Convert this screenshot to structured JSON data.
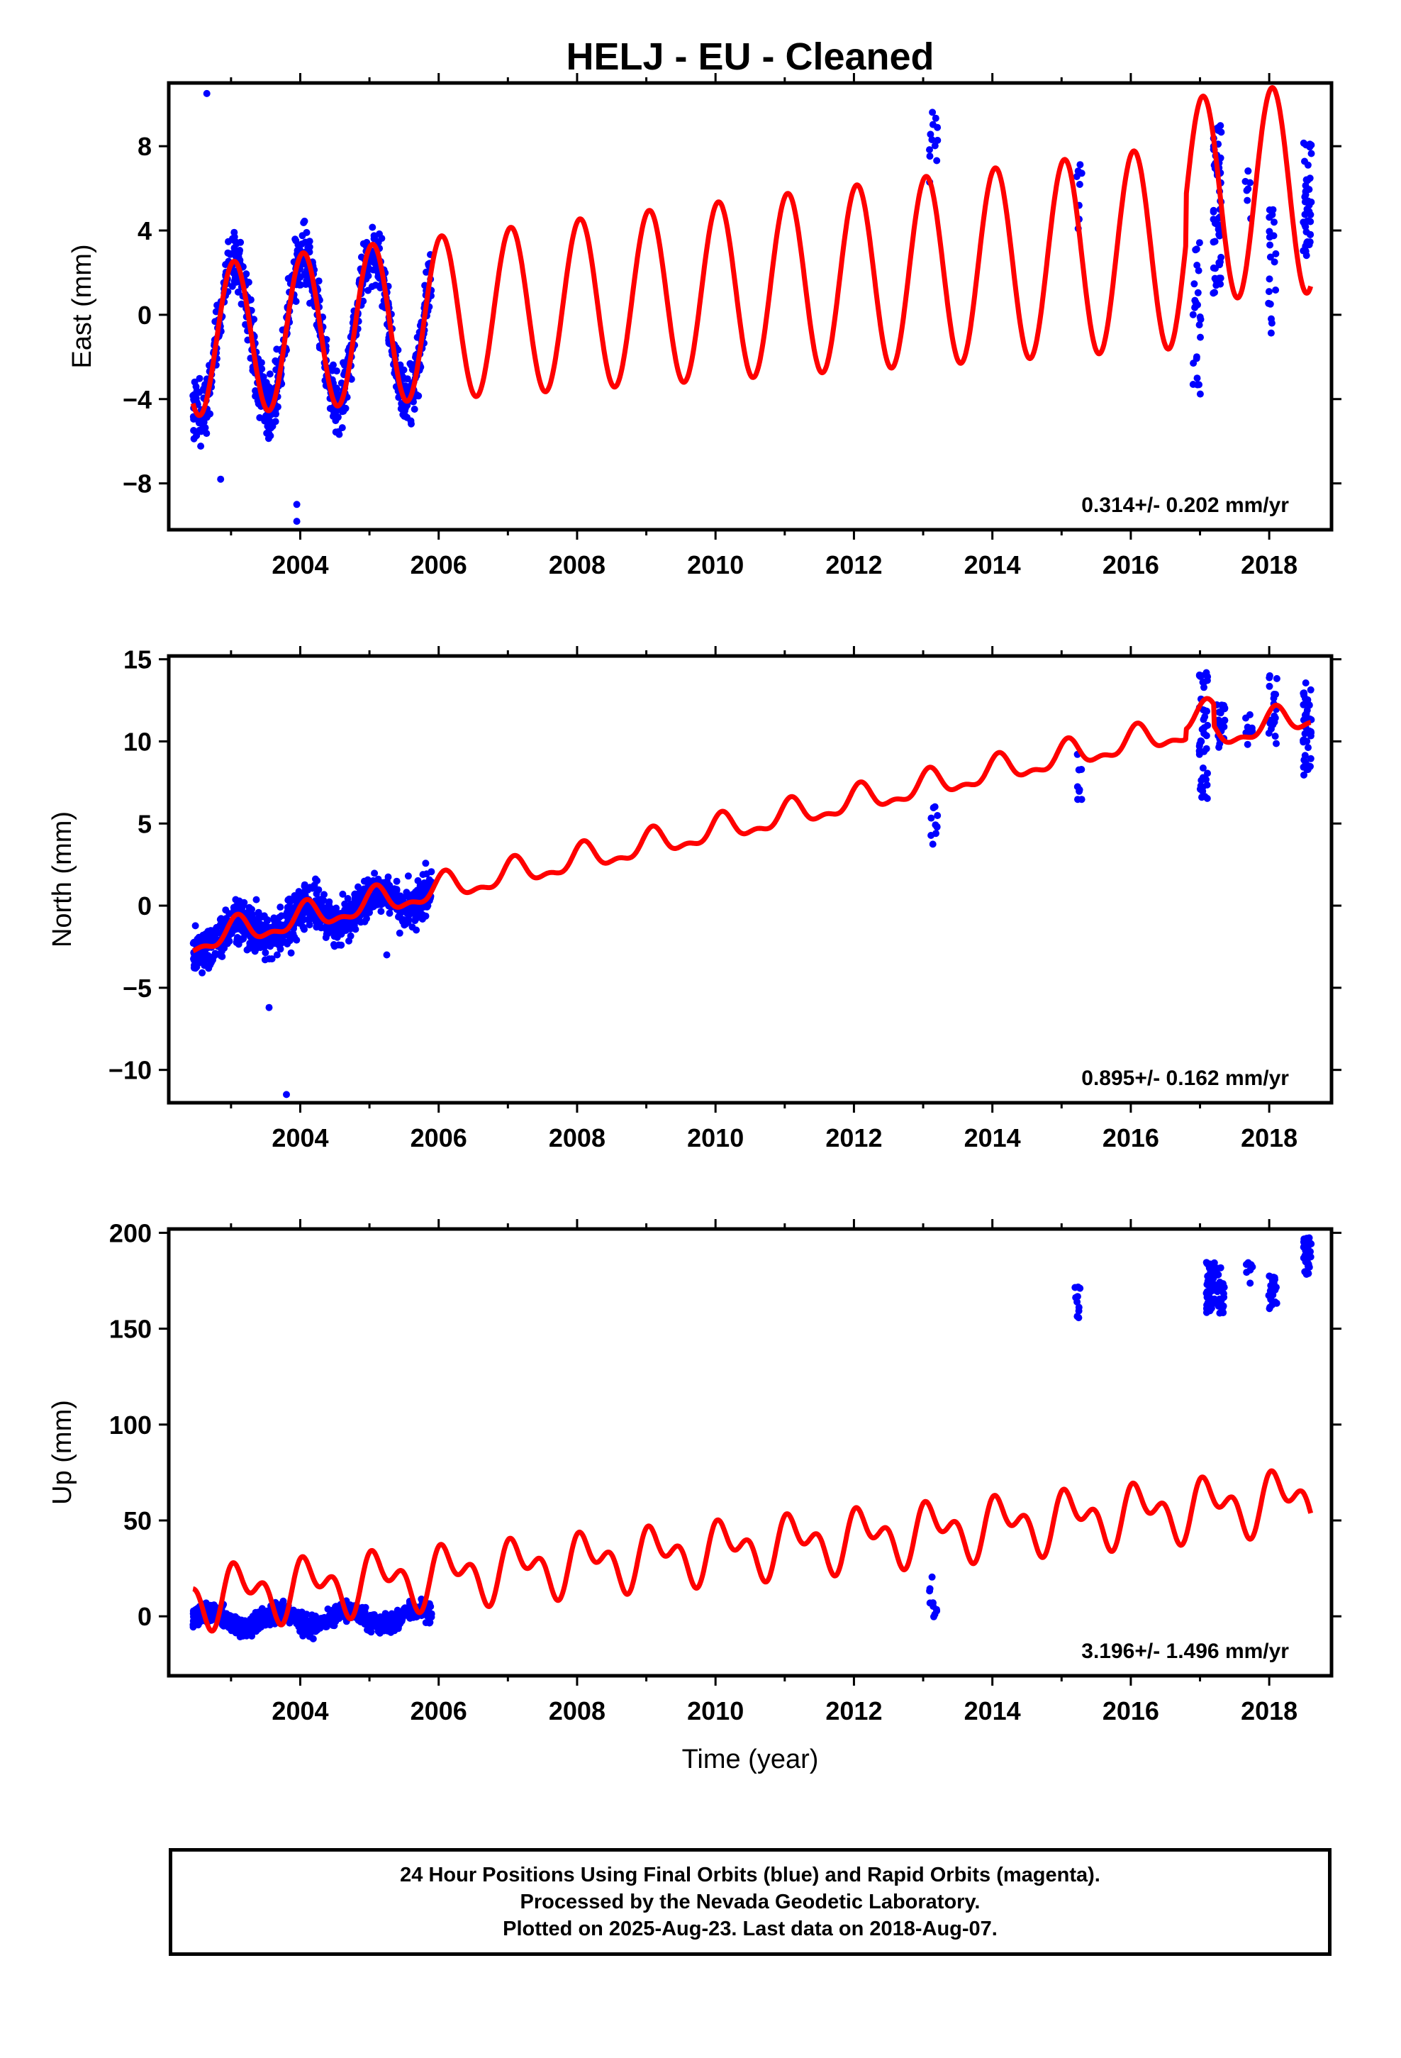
{
  "title": "HELJ  - EU - Cleaned",
  "footer": {
    "line1": "24 Hour Positions Using Final Orbits (blue) and Rapid Orbits (magenta).",
    "line2": "Processed by the Nevada Geodetic Laboratory.",
    "line3": "Plotted on 2025-Aug-23. Last data on 2018-Aug-07."
  },
  "colors": {
    "data": "#0000ff",
    "model": "#ff0000",
    "frame": "#000000"
  },
  "chart_data": [
    {
      "type": "scatter",
      "ylabel": "East (mm)",
      "xlabel": "",
      "rate_label": "0.314+/- 0.202 mm/yr",
      "xlim": [
        2002.1,
        2018.9
      ],
      "ylim": [
        -10.2,
        11
      ],
      "x_ticks": [
        2004,
        2006,
        2008,
        2010,
        2012,
        2014,
        2016,
        2018
      ],
      "y_ticks": [
        -8,
        -4,
        0,
        4,
        8
      ],
      "y_tick_labels": [
        "−8",
        "−4",
        "0",
        "4",
        "8"
      ],
      "series": [
        {
          "role": "observations",
          "color": "#0000ff",
          "segments": [
            {
              "start": 2002.45,
              "end": 2005.9,
              "base": -1.25,
              "rate": 0.314,
              "amp": 3.55,
              "phase": 1.3,
              "noise": 1.4,
              "count": 900
            }
          ],
          "clusters": [
            {
              "x": 2013.15,
              "y_min": 6.0,
              "y_max": 10.0,
              "count": 12
            },
            {
              "x": 2015.25,
              "y_min": 3.5,
              "y_max": 7.4,
              "count": 8
            },
            {
              "x": 2016.95,
              "y_min": -3.8,
              "y_max": 3.5,
              "count": 25
            },
            {
              "x": 2017.25,
              "y_min": 1.0,
              "y_max": 9.5,
              "count": 60
            },
            {
              "x": 2017.7,
              "y_min": 4.5,
              "y_max": 7.0,
              "count": 8
            },
            {
              "x": 2018.05,
              "y_min": -1.0,
              "y_max": 5.0,
              "count": 20
            },
            {
              "x": 2018.55,
              "y_min": 2.8,
              "y_max": 8.3,
              "count": 40
            }
          ],
          "outliers": [
            [
              2002.65,
              10.5
            ],
            [
              2003.95,
              -9.0
            ],
            [
              2003.95,
              -9.8
            ],
            [
              2002.85,
              -7.8
            ]
          ]
        },
        {
          "role": "model",
          "color": "#ff0000",
          "start": 2002.45,
          "end": 2018.6,
          "base": -1.25,
          "rate": 0.314,
          "amp": 3.55,
          "phase": 1.3,
          "amp_growth": 0.025,
          "semiannual_amp": 0.0,
          "semiannual_phase": 0.0,
          "jumps": [
            [
              2016.8,
              2.2
            ]
          ]
        }
      ]
    },
    {
      "type": "scatter",
      "ylabel": "North (mm)",
      "xlabel": "",
      "rate_label": "0.895+/- 0.162 mm/yr",
      "xlim": [
        2002.1,
        2018.9
      ],
      "ylim": [
        -12,
        15.2
      ],
      "x_ticks": [
        2004,
        2006,
        2008,
        2010,
        2012,
        2014,
        2016,
        2018
      ],
      "y_ticks": [
        -10,
        -5,
        0,
        5,
        10,
        15
      ],
      "y_tick_labels": [
        "−10",
        "−5",
        "0",
        "5",
        "10",
        "15"
      ],
      "series": [
        {
          "role": "observations",
          "color": "#0000ff",
          "segments": [
            {
              "start": 2002.45,
              "end": 2005.9,
              "base": -2.2,
              "rate": 0.895,
              "amp": 0.75,
              "phase": 1.0,
              "noise": 1.3,
              "count": 900
            }
          ],
          "clusters": [
            {
              "x": 2013.15,
              "y_min": 3.5,
              "y_max": 6.8,
              "count": 10
            },
            {
              "x": 2015.25,
              "y_min": 6.2,
              "y_max": 9.6,
              "count": 8
            },
            {
              "x": 2017.05,
              "y_min": 6.5,
              "y_max": 14.7,
              "count": 45
            },
            {
              "x": 2017.3,
              "y_min": 9.5,
              "y_max": 12.5,
              "count": 25
            },
            {
              "x": 2017.7,
              "y_min": 9.7,
              "y_max": 12.2,
              "count": 8
            },
            {
              "x": 2018.05,
              "y_min": 9.8,
              "y_max": 14.5,
              "count": 20
            },
            {
              "x": 2018.55,
              "y_min": 7.8,
              "y_max": 13.8,
              "count": 40
            }
          ],
          "outliers": [
            [
              2003.8,
              -11.5
            ],
            [
              2003.55,
              -6.2
            ],
            [
              2005.25,
              -3.0
            ]
          ]
        },
        {
          "role": "model",
          "color": "#ff0000",
          "start": 2002.45,
          "end": 2018.6,
          "base": -2.2,
          "rate": 0.895,
          "amp": 0.75,
          "phase": 1.0,
          "amp_growth": 0.0,
          "semiannual_amp": 0.35,
          "semiannual_phase": 0.4,
          "jumps": [
            [
              2016.8,
              0.6
            ],
            [
              2017.2,
              -1.3
            ]
          ]
        }
      ]
    },
    {
      "type": "scatter",
      "ylabel": "Up (mm)",
      "xlabel": "Time (year)",
      "rate_label": "3.196+/- 1.496 mm/yr",
      "xlim": [
        2002.1,
        2018.9
      ],
      "ylim": [
        -31,
        202
      ],
      "x_ticks": [
        2004,
        2006,
        2008,
        2010,
        2012,
        2014,
        2016,
        2018
      ],
      "y_ticks": [
        0,
        50,
        100,
        150,
        200
      ],
      "y_tick_labels": [
        "0",
        "50",
        "100",
        "150",
        "200"
      ],
      "series": [
        {
          "role": "observations",
          "color": "#0000ff",
          "segments": [
            {
              "start": 2002.45,
              "end": 2005.9,
              "base": -2.0,
              "rate": 0.5,
              "amp": 4.0,
              "phase": 3.5,
              "noise": 5.0,
              "count": 900
            }
          ],
          "clusters": [
            {
              "x": 2013.15,
              "y_min": -6.5,
              "y_max": 20.5,
              "count": 10
            },
            {
              "x": 2015.25,
              "y_min": 155,
              "y_max": 172,
              "count": 10
            },
            {
              "x": 2017.15,
              "y_min": 158,
              "y_max": 185,
              "count": 55
            },
            {
              "x": 2017.3,
              "y_min": 158,
              "y_max": 182,
              "count": 30
            },
            {
              "x": 2017.7,
              "y_min": 170,
              "y_max": 185,
              "count": 8
            },
            {
              "x": 2018.05,
              "y_min": 160,
              "y_max": 178,
              "count": 20
            },
            {
              "x": 2018.55,
              "y_min": 178,
              "y_max": 198,
              "count": 40
            }
          ],
          "outliers": []
        },
        {
          "role": "model",
          "color": "#ff0000",
          "start": 2002.45,
          "end": 2018.6,
          "base": 10.0,
          "rate": 3.196,
          "amp": 11.0,
          "phase": 0.6,
          "amp_growth": 0.0,
          "semiannual_amp": 9.0,
          "semiannual_phase": 1.6,
          "jumps": []
        }
      ]
    }
  ]
}
